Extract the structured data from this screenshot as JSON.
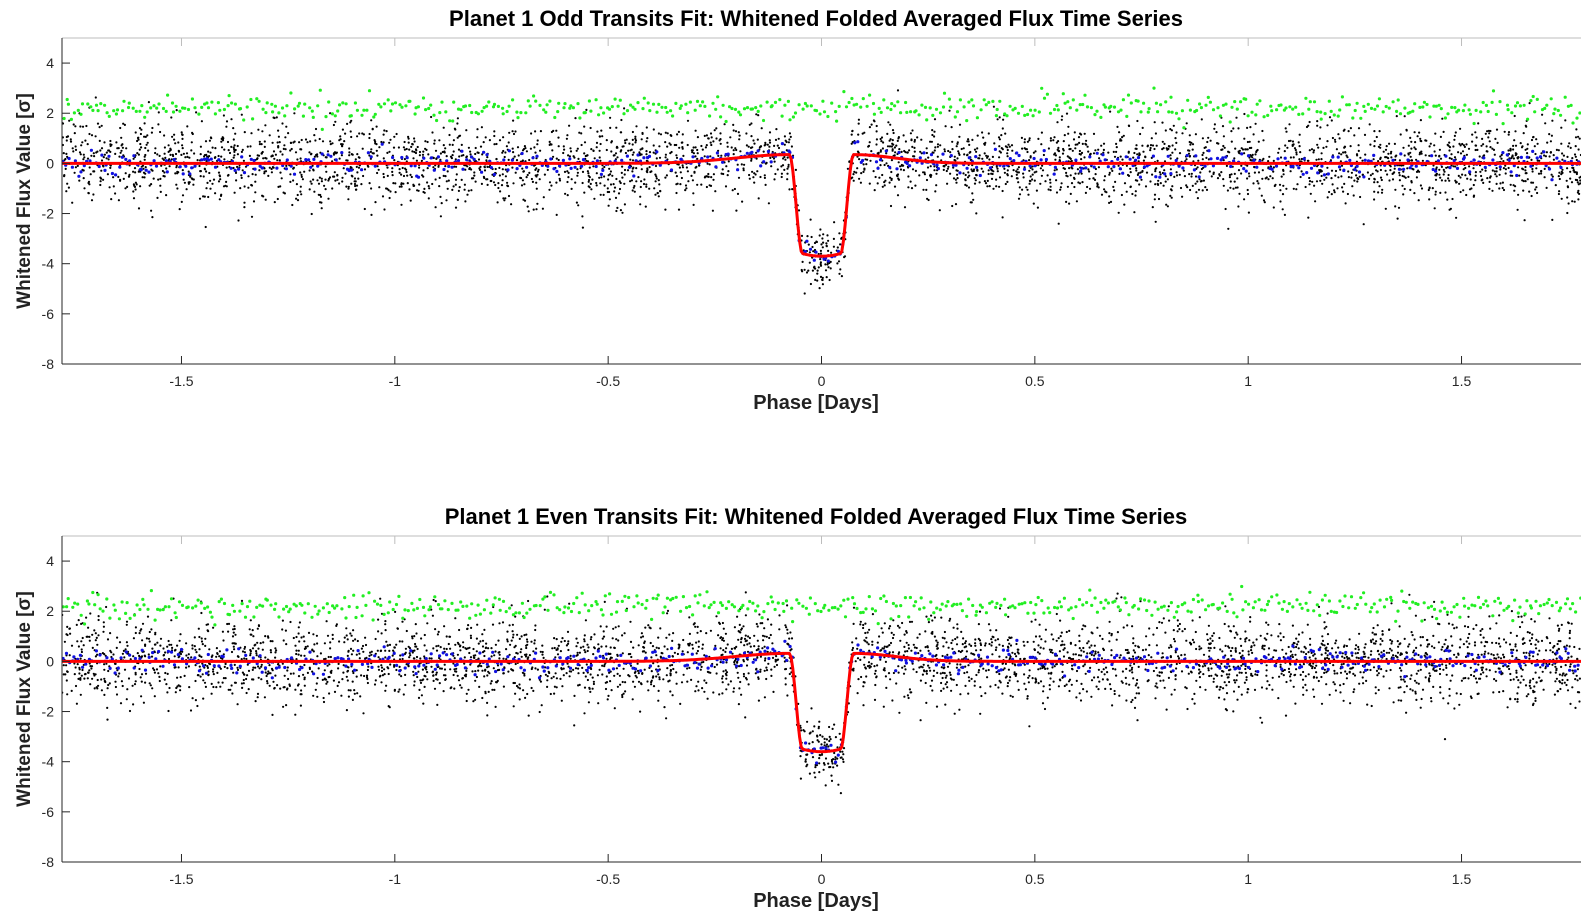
{
  "chart_data": [
    {
      "type": "scatter",
      "title": "Planet 1 Odd Transits Fit: Whitened Folded Averaged Flux Time Series",
      "xlabel": "Phase [Days]",
      "ylabel": "Whitened Flux Value [σ]",
      "xlim": [
        -1.78,
        1.78
      ],
      "ylim": [
        -8,
        5
      ],
      "xticks": [
        -1.5,
        -1,
        -0.5,
        0,
        0.5,
        1,
        1.5
      ],
      "xtick_labels": [
        "-1.5",
        "-1",
        "-0.5",
        "0",
        "0.5",
        "1",
        "1.5"
      ],
      "yticks": [
        4,
        2,
        0,
        -2,
        -4,
        -6,
        -8
      ],
      "ytick_labels": [
        "4",
        "2",
        "0",
        "-2",
        "-4",
        "-6",
        "-8"
      ],
      "grid": false,
      "transit": {
        "center": 0,
        "half_width": 0.075,
        "ingress": 0.03,
        "depth": 3.7
      },
      "series": [
        {
          "kind": "whitened_flux_points",
          "color": "#000000",
          "scatter_sigma": 0.8,
          "points": 3600
        },
        {
          "kind": "binned_flux_points",
          "color": "#1010e0",
          "points": 520
        },
        {
          "kind": "residual_points_offset",
          "color": "#22ee22",
          "offset": 2.2,
          "points": 520
        },
        {
          "kind": "fitted_transit_model",
          "color": "#ff0000",
          "pre_transit_bump": 0.35,
          "post_transit_bump": 0.35
        }
      ]
    },
    {
      "type": "scatter",
      "title": "Planet 1 Even Transits Fit: Whitened Folded Averaged Flux Time Series",
      "xlabel": "Phase [Days]",
      "ylabel": "Whitened Flux Value [σ]",
      "xlim": [
        -1.78,
        1.78
      ],
      "ylim": [
        -8,
        5
      ],
      "xticks": [
        -1.5,
        -1,
        -0.5,
        0,
        0.5,
        1,
        1.5
      ],
      "xtick_labels": [
        "-1.5",
        "-1",
        "-0.5",
        "0",
        "0.5",
        "1",
        "1.5"
      ],
      "yticks": [
        4,
        2,
        0,
        -2,
        -4,
        -6,
        -8
      ],
      "ytick_labels": [
        "4",
        "2",
        "0",
        "-2",
        "-4",
        "-6",
        "-8"
      ],
      "grid": false,
      "transit": {
        "center": 0,
        "half_width": 0.075,
        "ingress": 0.03,
        "depth": 3.6
      },
      "series": [
        {
          "kind": "whitened_flux_points",
          "color": "#000000",
          "scatter_sigma": 0.85,
          "points": 3600
        },
        {
          "kind": "binned_flux_points",
          "color": "#1010e0",
          "points": 520
        },
        {
          "kind": "residual_points_offset",
          "color": "#22ee22",
          "offset": 2.2,
          "points": 520
        },
        {
          "kind": "fitted_transit_model",
          "color": "#ff0000",
          "pre_transit_bump": 0.32,
          "post_transit_bump": 0.32
        }
      ]
    }
  ]
}
